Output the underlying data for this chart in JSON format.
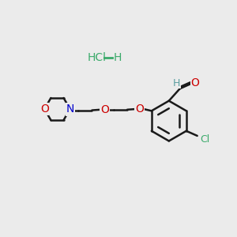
{
  "background_color": "#ebebeb",
  "atom_colors": {
    "O": "#cc0000",
    "N": "#0000cc",
    "Cl": "#3aaa6a",
    "H": "#5a9ea0",
    "C": "#1a1a1a"
  },
  "bond_color": "#1a1a1a",
  "bond_width": 1.8
}
